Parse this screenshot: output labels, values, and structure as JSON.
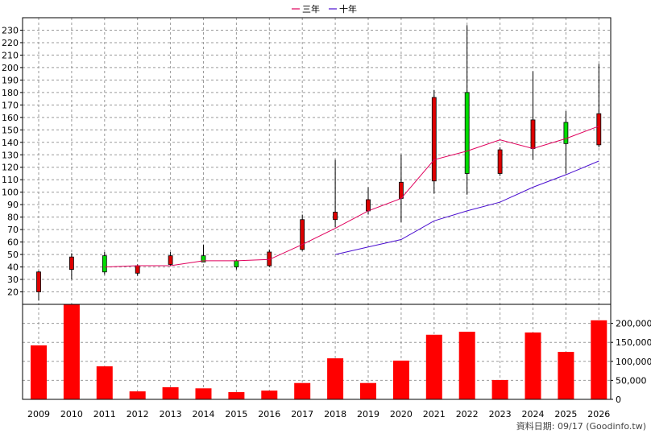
{
  "chart_data": {
    "type": "candlestick+line+bar",
    "legend": {
      "position": "top-center",
      "entries": [
        {
          "label": "三年",
          "color": "#e0005c"
        },
        {
          "label": "十年",
          "color": "#4b0fd0"
        }
      ]
    },
    "x": [
      "2009",
      "2010",
      "2011",
      "2012",
      "2013",
      "2014",
      "2015",
      "2016",
      "2017",
      "2018",
      "2019",
      "2020",
      "2021",
      "2022",
      "2023",
      "2024",
      "2025",
      "2026"
    ],
    "price_axis": {
      "ylim": [
        10,
        240
      ],
      "ticks": [
        20,
        30,
        40,
        50,
        60,
        70,
        80,
        90,
        100,
        110,
        120,
        130,
        140,
        150,
        160,
        170,
        180,
        190,
        200,
        210,
        220,
        230
      ],
      "side": "left"
    },
    "candles": [
      {
        "year": "2009",
        "open": 36,
        "close": 20,
        "high": 37,
        "low": 13
      },
      {
        "year": "2010",
        "open": 48,
        "close": 38,
        "high": 51,
        "low": 30
      },
      {
        "year": "2011",
        "open": 36,
        "close": 49,
        "high": 52,
        "low": 34
      },
      {
        "year": "2012",
        "open": 41,
        "close": 35,
        "high": 42,
        "low": 33
      },
      {
        "year": "2013",
        "open": 49,
        "close": 42,
        "high": 52,
        "low": 41
      },
      {
        "year": "2014",
        "open": 44,
        "close": 49,
        "high": 58,
        "low": 44
      },
      {
        "year": "2015",
        "open": 40,
        "close": 45,
        "high": 46,
        "low": 38
      },
      {
        "year": "2016",
        "open": 52,
        "close": 41,
        "high": 54,
        "low": 40
      },
      {
        "year": "2017",
        "open": 78,
        "close": 54,
        "high": 82,
        "low": 53
      },
      {
        "year": "2018",
        "open": 84,
        "close": 78,
        "high": 126,
        "low": 72
      },
      {
        "year": "2019",
        "open": 94,
        "close": 85,
        "high": 104,
        "low": 82
      },
      {
        "year": "2020",
        "open": 108,
        "close": 95,
        "high": 130,
        "low": 76
      },
      {
        "year": "2021",
        "open": 176,
        "close": 109,
        "high": 182,
        "low": 99
      },
      {
        "year": "2022",
        "open": 115,
        "close": 180,
        "high": 234,
        "low": 98
      },
      {
        "year": "2023",
        "open": 134,
        "close": 115,
        "high": 136,
        "low": 113
      },
      {
        "year": "2024",
        "open": 158,
        "close": 135,
        "high": 197,
        "low": 126
      },
      {
        "year": "2025",
        "open": 139,
        "close": 156,
        "high": 165,
        "low": 115
      },
      {
        "year": "2026",
        "open": 163,
        "close": 138,
        "high": 203,
        "low": 136
      }
    ],
    "up_color": "#00dd00",
    "down_color": "#dd0000",
    "series": [
      {
        "name": "三年",
        "color": "#e0005c",
        "x": [
          "2011",
          "2012",
          "2013",
          "2014",
          "2015",
          "2016",
          "2017",
          "2018",
          "2019",
          "2020",
          "2021",
          "2022",
          "2023",
          "2024",
          "2025",
          "2026"
        ],
        "values": [
          40,
          41,
          41,
          45,
          45,
          46,
          58,
          71,
          85,
          95,
          126,
          133,
          142,
          135,
          143,
          153
        ]
      },
      {
        "name": "十年",
        "color": "#4b0fd0",
        "x": [
          "2018",
          "2019",
          "2020",
          "2021",
          "2022",
          "2023",
          "2024",
          "2025",
          "2026"
        ],
        "values": [
          50,
          56,
          62,
          77,
          85,
          92,
          104,
          114,
          125
        ]
      }
    ],
    "volume": {
      "values": [
        142000,
        250000,
        87000,
        21000,
        32000,
        29000,
        19000,
        23000,
        43000,
        108000,
        43000,
        102000,
        170000,
        178000,
        51000,
        176000,
        125000,
        208000
      ],
      "ylim": [
        0,
        250000
      ],
      "ticks": [
        "0",
        "50,000",
        "100,000",
        "150,000",
        "200,000"
      ],
      "tick_values": [
        0,
        50000,
        100000,
        150000,
        200000
      ],
      "side": "right",
      "color": "#ff0000"
    },
    "grid": true,
    "footer": "資料日期: 09/17  (Goodinfo.tw)"
  }
}
